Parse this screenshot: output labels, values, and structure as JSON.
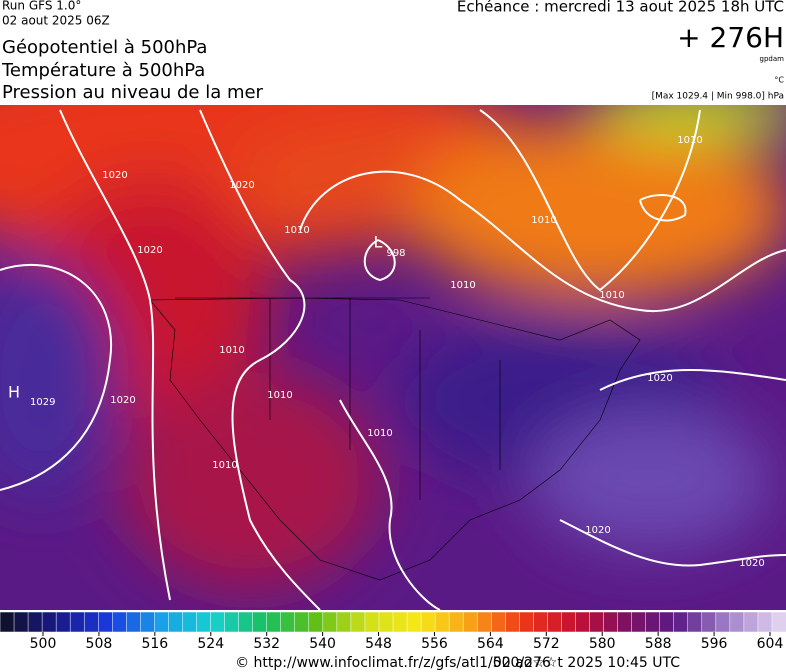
{
  "header": {
    "run": "Run GFS 1.0°",
    "date": "02 aout 2025 06Z",
    "titles": [
      "Géopotentiel à 500hPa",
      "Température à 500hPa",
      "Pression au niveau de la mer"
    ],
    "echeance": "Echéance : mercredi 13 aout 2025 18h UTC",
    "lead": "+ 276H",
    "unit_geo": "gpdam",
    "unit_temp": "°C",
    "range": "[Max 1029.4 | Min 998.0] hPa"
  },
  "map": {
    "labels": [
      "1020",
      "1020",
      "1020",
      "1020",
      "1020",
      "1020",
      "1020",
      "1010",
      "1010",
      "1010",
      "1010",
      "1010",
      "1010",
      "1010",
      "1010",
      "1010",
      "998",
      "L",
      "H",
      "1029"
    ]
  },
  "colorbar": {
    "ticks": [
      500,
      508,
      516,
      524,
      532,
      540,
      548,
      556,
      564,
      572,
      580,
      588,
      596,
      604
    ]
  },
  "footer": {
    "url": "© http://www.infoclimat.fr/z/gfs/atl1/500/276",
    "stamp": "02 ao☆☆t 2025 10:45 UTC"
  }
}
